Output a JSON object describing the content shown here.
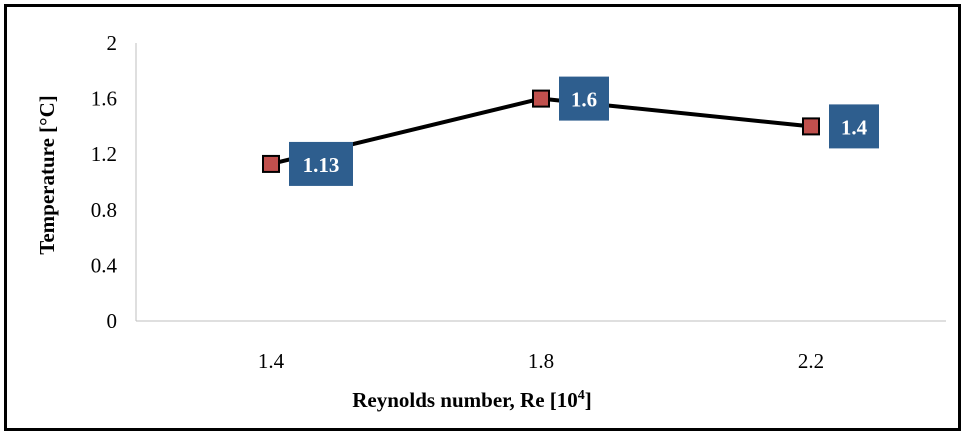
{
  "chart_data": {
    "type": "line",
    "title": "",
    "xlabel": "Reynolds number, Re [10",
    "xlabel_superscript": "4",
    "xlabel_suffix": "]",
    "ylabel": "Temperature  [°C]",
    "categories": [
      "1.4",
      "1.8",
      "2.2"
    ],
    "series": [
      {
        "values": [
          1.13,
          1.6,
          1.4
        ]
      }
    ],
    "data_labels": [
      "1.13",
      "1.6",
      "1.4"
    ],
    "yticks": [
      "0",
      "0.4",
      "0.8",
      "1.2",
      "1.6",
      "2"
    ],
    "ylim": [
      0,
      2
    ],
    "grid": false,
    "legend": "none",
    "colors": {
      "line": "#000000",
      "marker_fill": "#c0504d",
      "marker_stroke": "#000000",
      "label_bg": "#2e5e8e",
      "label_text": "#ffffff"
    }
  }
}
